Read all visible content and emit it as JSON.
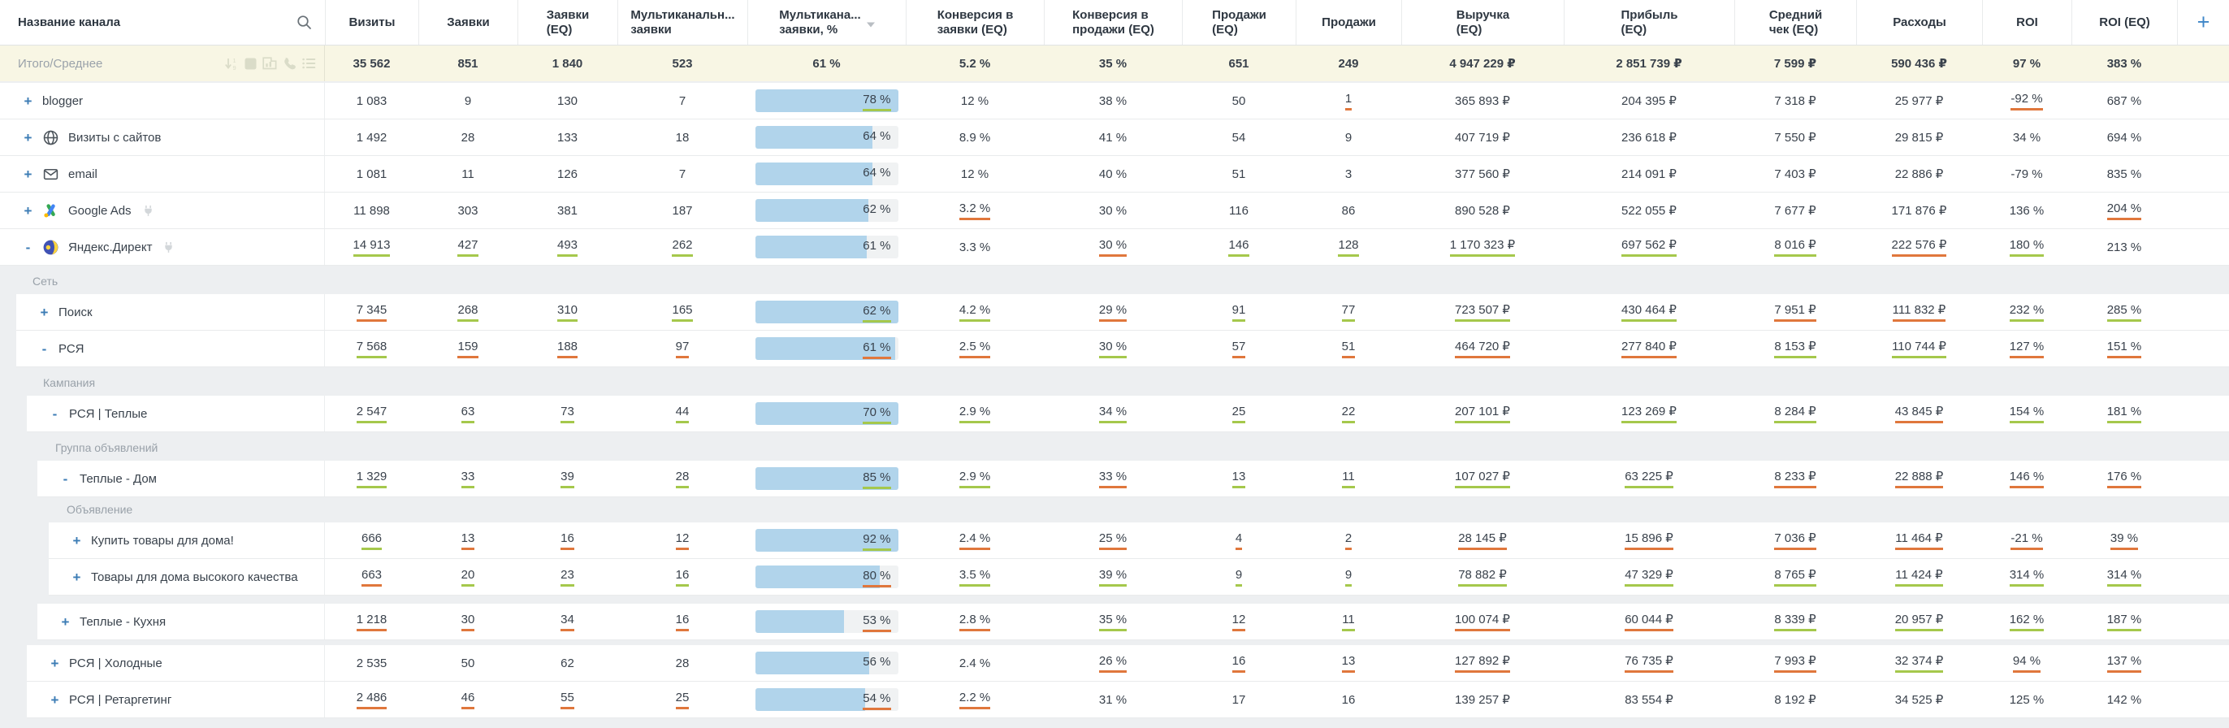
{
  "header": {
    "name_column": {
      "label": "Название канала",
      "search_icon": "search-icon"
    },
    "columns": [
      {
        "label": "Визиты"
      },
      {
        "label": "Заявки"
      },
      {
        "label": "Заявки\n(EQ)"
      },
      {
        "label": "Мультиканальн...\nзаявки"
      },
      {
        "label": "Мультикана...\nзаявки, %",
        "sort": "desc"
      },
      {
        "label": "Конверсия в\nзаявки (EQ)"
      },
      {
        "label": "Конверсия в\nпродажи (EQ)"
      },
      {
        "label": "Продажи\n(EQ)"
      },
      {
        "label": "Продажи"
      },
      {
        "label": "Выручка\n(EQ)"
      },
      {
        "label": "Прибыль\n(EQ)"
      },
      {
        "label": "Средний\nчек (EQ)"
      },
      {
        "label": "Расходы"
      },
      {
        "label": "ROI"
      },
      {
        "label": "ROI (EQ)"
      }
    ],
    "add_column_label": "+"
  },
  "totals": {
    "label": "Итого/Среднее",
    "icons": [
      "sort-numeric-icon",
      "stop-icon",
      "chart-icon",
      "phone-icon",
      "list-icon"
    ],
    "values": [
      "35 562",
      "851",
      "1 840",
      "523",
      "61 %",
      "5.2 %",
      "35 %",
      "651",
      "249",
      "4 947 229 ₽",
      "2 851 739 ₽",
      "7 599 ₽",
      "590 436 ₽",
      "97 %",
      "383 %"
    ]
  },
  "colors": {
    "accent_blue": "#3c7cb5",
    "bar_fill": "#b1d4eb",
    "trend_up_underline": "#a5c84c",
    "trend_down_underline": "#e0773c",
    "totals_bg": "#f8f6e4"
  },
  "rows": [
    {
      "type": "row",
      "name": "blogger",
      "level": 0,
      "expander": "+",
      "icon": null,
      "plug": false,
      "cells": [
        {
          "v": "1 083"
        },
        {
          "v": "9"
        },
        {
          "v": "130"
        },
        {
          "v": "7"
        },
        {
          "v": "78 %",
          "bar": true,
          "fill": 100,
          "u": "up"
        },
        {
          "v": "12 %"
        },
        {
          "v": "38 %"
        },
        {
          "v": "50"
        },
        {
          "v": "1",
          "u": "down"
        },
        {
          "v": "365 893 ₽"
        },
        {
          "v": "204 395 ₽"
        },
        {
          "v": "7 318 ₽"
        },
        {
          "v": "25 977 ₽"
        },
        {
          "v": "-92 %",
          "u": "down"
        },
        {
          "v": "687 %"
        }
      ]
    },
    {
      "type": "row",
      "name": "Визиты с сайтов",
      "level": 0,
      "expander": "+",
      "icon": "globe-icon",
      "plug": false,
      "cells": [
        {
          "v": "1 492"
        },
        {
          "v": "28"
        },
        {
          "v": "133"
        },
        {
          "v": "18"
        },
        {
          "v": "64 %",
          "bar": true,
          "fill": 82
        },
        {
          "v": "8.9 %"
        },
        {
          "v": "41 %"
        },
        {
          "v": "54"
        },
        {
          "v": "9"
        },
        {
          "v": "407 719 ₽"
        },
        {
          "v": "236 618 ₽"
        },
        {
          "v": "7 550 ₽"
        },
        {
          "v": "29 815 ₽"
        },
        {
          "v": "34 %"
        },
        {
          "v": "694 %"
        }
      ]
    },
    {
      "type": "row",
      "name": "email",
      "level": 0,
      "expander": "+",
      "icon": "email-icon",
      "plug": false,
      "cells": [
        {
          "v": "1 081"
        },
        {
          "v": "11"
        },
        {
          "v": "126"
        },
        {
          "v": "7"
        },
        {
          "v": "64 %",
          "bar": true,
          "fill": 82
        },
        {
          "v": "12 %"
        },
        {
          "v": "40 %"
        },
        {
          "v": "51"
        },
        {
          "v": "3"
        },
        {
          "v": "377 560 ₽"
        },
        {
          "v": "214 091 ₽"
        },
        {
          "v": "7 403 ₽"
        },
        {
          "v": "22 886 ₽"
        },
        {
          "v": "-79 %"
        },
        {
          "v": "835 %"
        }
      ]
    },
    {
      "type": "row",
      "name": "Google Ads",
      "level": 0,
      "expander": "+",
      "icon": "google-ads-icon",
      "plug": true,
      "cells": [
        {
          "v": "11 898"
        },
        {
          "v": "303"
        },
        {
          "v": "381"
        },
        {
          "v": "187"
        },
        {
          "v": "62 %",
          "bar": true,
          "fill": 79
        },
        {
          "v": "3.2 %",
          "u": "down"
        },
        {
          "v": "30 %"
        },
        {
          "v": "116"
        },
        {
          "v": "86"
        },
        {
          "v": "890 528 ₽"
        },
        {
          "v": "522 055 ₽"
        },
        {
          "v": "7 677 ₽"
        },
        {
          "v": "171 876 ₽"
        },
        {
          "v": "136 %"
        },
        {
          "v": "204 %",
          "u": "down"
        }
      ]
    },
    {
      "type": "row",
      "name": "Яндекс.Директ",
      "level": 0,
      "expander": "-",
      "icon": "yandex-direct-icon",
      "plug": true,
      "cells": [
        {
          "v": "14 913",
          "u": "up"
        },
        {
          "v": "427",
          "u": "up"
        },
        {
          "v": "493",
          "u": "up"
        },
        {
          "v": "262",
          "u": "up"
        },
        {
          "v": "61 %",
          "bar": true,
          "fill": 78
        },
        {
          "v": "3.3 %"
        },
        {
          "v": "30 %",
          "u": "down"
        },
        {
          "v": "146",
          "u": "up"
        },
        {
          "v": "128",
          "u": "up"
        },
        {
          "v": "1 170 323 ₽",
          "u": "up"
        },
        {
          "v": "697 562 ₽",
          "u": "up"
        },
        {
          "v": "8 016 ₽",
          "u": "up"
        },
        {
          "v": "222 576 ₽",
          "u": "down"
        },
        {
          "v": "180 %",
          "u": "up"
        },
        {
          "v": "213 %"
        }
      ]
    },
    {
      "type": "section",
      "label": "Сеть",
      "indent": 40
    },
    {
      "type": "row",
      "name": "Поиск",
      "level": 1,
      "expander": "+",
      "icon": null,
      "plug": false,
      "cells": [
        {
          "v": "7 345",
          "u": "down"
        },
        {
          "v": "268",
          "u": "up"
        },
        {
          "v": "310",
          "u": "up"
        },
        {
          "v": "165",
          "u": "up"
        },
        {
          "v": "62 %",
          "bar": true,
          "fill": 100,
          "u": "up"
        },
        {
          "v": "4.2 %",
          "u": "up"
        },
        {
          "v": "29 %",
          "u": "down"
        },
        {
          "v": "91",
          "u": "up"
        },
        {
          "v": "77",
          "u": "up"
        },
        {
          "v": "723 507 ₽",
          "u": "up"
        },
        {
          "v": "430 464 ₽",
          "u": "up"
        },
        {
          "v": "7 951 ₽",
          "u": "down"
        },
        {
          "v": "111 832 ₽",
          "u": "down"
        },
        {
          "v": "232 %",
          "u": "up"
        },
        {
          "v": "285 %",
          "u": "up"
        }
      ]
    },
    {
      "type": "row",
      "name": "РСЯ",
      "level": 1,
      "expander": "-",
      "icon": null,
      "plug": false,
      "cells": [
        {
          "v": "7 568",
          "u": "up"
        },
        {
          "v": "159",
          "u": "down"
        },
        {
          "v": "188",
          "u": "down"
        },
        {
          "v": "97",
          "u": "down"
        },
        {
          "v": "61 %",
          "bar": true,
          "fill": 98,
          "u": "down"
        },
        {
          "v": "2.5 %",
          "u": "down"
        },
        {
          "v": "30 %",
          "u": "up"
        },
        {
          "v": "57",
          "u": "down"
        },
        {
          "v": "51",
          "u": "down"
        },
        {
          "v": "464 720 ₽",
          "u": "down"
        },
        {
          "v": "277 840 ₽",
          "u": "down"
        },
        {
          "v": "8 153 ₽",
          "u": "up"
        },
        {
          "v": "110 744 ₽",
          "u": "up"
        },
        {
          "v": "127 %",
          "u": "down"
        },
        {
          "v": "151 %",
          "u": "down"
        }
      ]
    },
    {
      "type": "section",
      "label": "Кампания",
      "indent": 53
    },
    {
      "type": "row",
      "name": "РСЯ | Теплые",
      "level": 2,
      "expander": "-",
      "icon": null,
      "plug": false,
      "cells": [
        {
          "v": "2 547",
          "u": "up"
        },
        {
          "v": "63",
          "u": "up"
        },
        {
          "v": "73",
          "u": "up"
        },
        {
          "v": "44",
          "u": "up"
        },
        {
          "v": "70 %",
          "bar": true,
          "fill": 100,
          "u": "up"
        },
        {
          "v": "2.9 %",
          "u": "up"
        },
        {
          "v": "34 %",
          "u": "up"
        },
        {
          "v": "25",
          "u": "up"
        },
        {
          "v": "22",
          "u": "up"
        },
        {
          "v": "207 101 ₽",
          "u": "up"
        },
        {
          "v": "123 269 ₽",
          "u": "up"
        },
        {
          "v": "8 284 ₽",
          "u": "up"
        },
        {
          "v": "43 845 ₽",
          "u": "down"
        },
        {
          "v": "154 %",
          "u": "up"
        },
        {
          "v": "181 %",
          "u": "up"
        }
      ]
    },
    {
      "type": "section",
      "label": "Группа объявлений",
      "indent": 68
    },
    {
      "type": "row",
      "name": "Теплые - Дом",
      "level": 3,
      "expander": "-",
      "icon": null,
      "plug": false,
      "cells": [
        {
          "v": "1 329",
          "u": "up"
        },
        {
          "v": "33",
          "u": "up"
        },
        {
          "v": "39",
          "u": "up"
        },
        {
          "v": "28",
          "u": "up"
        },
        {
          "v": "85 %",
          "bar": true,
          "fill": 100,
          "u": "up"
        },
        {
          "v": "2.9 %",
          "u": "up"
        },
        {
          "v": "33 %",
          "u": "down"
        },
        {
          "v": "13",
          "u": "up"
        },
        {
          "v": "11",
          "u": "up"
        },
        {
          "v": "107 027 ₽",
          "u": "up"
        },
        {
          "v": "63 225 ₽",
          "u": "up"
        },
        {
          "v": "8 233 ₽",
          "u": "down"
        },
        {
          "v": "22 888 ₽",
          "u": "down"
        },
        {
          "v": "146 %",
          "u": "down"
        },
        {
          "v": "176 %",
          "u": "down"
        }
      ]
    },
    {
      "type": "section",
      "label": "Объявление",
      "indent": 82,
      "gap_before": 6
    },
    {
      "type": "row",
      "name": "Купить товары для дома!",
      "level": 4,
      "expander": "+",
      "icon": null,
      "plug": false,
      "cells": [
        {
          "v": "666",
          "u": "up"
        },
        {
          "v": "13",
          "u": "down"
        },
        {
          "v": "16",
          "u": "down"
        },
        {
          "v": "12",
          "u": "down"
        },
        {
          "v": "92 %",
          "bar": true,
          "fill": 100,
          "u": "up"
        },
        {
          "v": "2.4 %",
          "u": "down"
        },
        {
          "v": "25 %",
          "u": "down"
        },
        {
          "v": "4",
          "u": "down"
        },
        {
          "v": "2",
          "u": "down"
        },
        {
          "v": "28 145 ₽",
          "u": "down"
        },
        {
          "v": "15 896 ₽",
          "u": "down"
        },
        {
          "v": "7 036 ₽",
          "u": "down"
        },
        {
          "v": "11 464 ₽",
          "u": "down"
        },
        {
          "v": "-21 %",
          "u": "down"
        },
        {
          "v": "39 %",
          "u": "down"
        }
      ]
    },
    {
      "type": "row",
      "name": "Товары для дома высокого качества",
      "level": 4,
      "expander": "+",
      "icon": null,
      "plug": false,
      "cells": [
        {
          "v": "663",
          "u": "down"
        },
        {
          "v": "20",
          "u": "up"
        },
        {
          "v": "23",
          "u": "up"
        },
        {
          "v": "16",
          "u": "up"
        },
        {
          "v": "80 %",
          "bar": true,
          "fill": 87,
          "u": "down"
        },
        {
          "v": "3.5 %",
          "u": "up"
        },
        {
          "v": "39 %",
          "u": "up"
        },
        {
          "v": "9",
          "u": "up"
        },
        {
          "v": "9",
          "u": "up"
        },
        {
          "v": "78 882 ₽",
          "u": "up"
        },
        {
          "v": "47 329 ₽",
          "u": "up"
        },
        {
          "v": "8 765 ₽",
          "u": "up"
        },
        {
          "v": "11 424 ₽",
          "u": "up"
        },
        {
          "v": "314 %",
          "u": "up"
        },
        {
          "v": "314 %",
          "u": "up"
        }
      ]
    },
    {
      "type": "row",
      "name": "Теплые - Кухня",
      "level": 3,
      "expander": "+",
      "icon": null,
      "plug": false,
      "gap_before": 10,
      "cells": [
        {
          "v": "1 218",
          "u": "down"
        },
        {
          "v": "30",
          "u": "down"
        },
        {
          "v": "34",
          "u": "down"
        },
        {
          "v": "16",
          "u": "down"
        },
        {
          "v": "53 %",
          "bar": true,
          "fill": 62,
          "u": "down"
        },
        {
          "v": "2.8 %",
          "u": "down"
        },
        {
          "v": "35 %",
          "u": "up"
        },
        {
          "v": "12",
          "u": "down"
        },
        {
          "v": "11",
          "u": "up"
        },
        {
          "v": "100 074 ₽",
          "u": "down"
        },
        {
          "v": "60 044 ₽",
          "u": "down"
        },
        {
          "v": "8 339 ₽",
          "u": "up"
        },
        {
          "v": "20 957 ₽",
          "u": "up"
        },
        {
          "v": "162 %",
          "u": "up"
        },
        {
          "v": "187 %",
          "u": "up"
        }
      ]
    },
    {
      "type": "row",
      "name": "РСЯ | Холодные",
      "level": 2,
      "expander": "+",
      "icon": null,
      "plug": false,
      "gap_before": 6,
      "cells": [
        {
          "v": "2 535"
        },
        {
          "v": "50"
        },
        {
          "v": "62"
        },
        {
          "v": "28"
        },
        {
          "v": "56 %",
          "bar": true,
          "fill": 80
        },
        {
          "v": "2.4 %"
        },
        {
          "v": "26 %",
          "u": "down"
        },
        {
          "v": "16",
          "u": "down"
        },
        {
          "v": "13",
          "u": "down"
        },
        {
          "v": "127 892 ₽",
          "u": "down"
        },
        {
          "v": "76 735 ₽",
          "u": "down"
        },
        {
          "v": "7 993 ₽",
          "u": "down"
        },
        {
          "v": "32 374 ₽",
          "u": "up"
        },
        {
          "v": "94 %",
          "u": "down"
        },
        {
          "v": "137 %",
          "u": "down"
        }
      ]
    },
    {
      "type": "row",
      "name": "РСЯ | Ретаргетинг",
      "level": 2,
      "expander": "+",
      "icon": null,
      "plug": false,
      "cells": [
        {
          "v": "2 486",
          "u": "down"
        },
        {
          "v": "46",
          "u": "down"
        },
        {
          "v": "55",
          "u": "down"
        },
        {
          "v": "25",
          "u": "down"
        },
        {
          "v": "54 %",
          "bar": true,
          "fill": 77,
          "u": "down"
        },
        {
          "v": "2.2 %",
          "u": "down"
        },
        {
          "v": "31 %"
        },
        {
          "v": "17"
        },
        {
          "v": "16"
        },
        {
          "v": "139 257 ₽"
        },
        {
          "v": "83 554 ₽"
        },
        {
          "v": "8 192 ₽"
        },
        {
          "v": "34 525 ₽"
        },
        {
          "v": "125 %"
        },
        {
          "v": "142 %"
        }
      ]
    }
  ]
}
